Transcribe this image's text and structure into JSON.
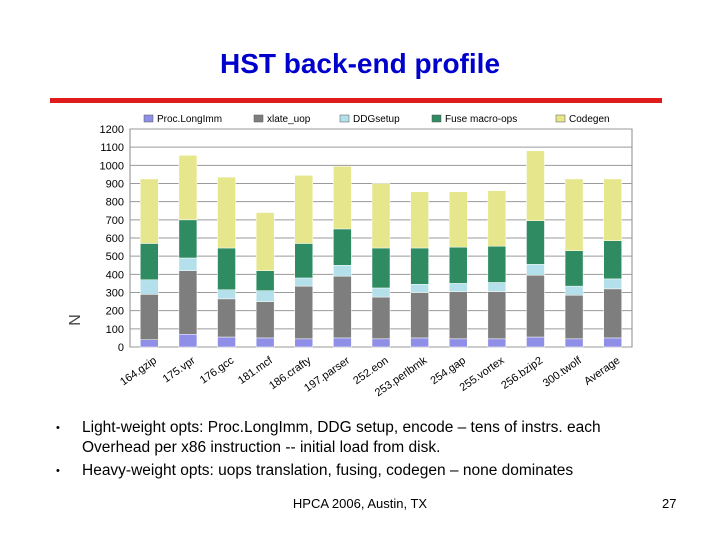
{
  "slide": {
    "title": "HST back-end profile",
    "footer": "HPCA 2006, Austin, TX",
    "page_number": "27",
    "bullets": [
      {
        "lines": [
          "Light-weight opts: Proc.LongImm, DDG setup, encode – tens of instrs. each",
          "Overhead per x86 instruction -- initial load from disk."
        ]
      },
      {
        "lines": [
          "Heavy-weight opts: uops translation, fusing, codegen – none dominates"
        ]
      }
    ]
  },
  "colors": {
    "title": "#0000cc",
    "rule": "#e01b1b",
    "series": [
      "#8f8fe8",
      "#7e7e7e",
      "#b3e0ea",
      "#2e8b62",
      "#e6e68c"
    ]
  },
  "chart_data": {
    "type": "bar",
    "stacked": true,
    "ylim": [
      0,
      1200
    ],
    "yticks": [
      0,
      100,
      200,
      300,
      400,
      500,
      600,
      700,
      800,
      900,
      1000,
      1100,
      1200
    ],
    "ylabel": "N",
    "grid": true,
    "legend": "top",
    "categories": [
      "164.gzip",
      "175.vpr",
      "176.gcc",
      "181.mcf",
      "186.crafty",
      "197.parser",
      "252.eon",
      "253.perlbmk",
      "254.gap",
      "255.vortex",
      "256.bzip2",
      "300.twolf",
      "Average"
    ],
    "tick_labels": [
      "164.gzip",
      "175.vpr",
      "176.gcc",
      "181.mcf",
      "186.crafty",
      "197.parser",
      "252.eon",
      "253.perlbmk",
      "254.gap",
      "255.vortex",
      "256.bzip2",
      "300.twolf",
      "Average"
    ],
    "series": [
      {
        "name": "Proc.LongImm",
        "values": [
          40,
          70,
          55,
          50,
          45,
          50,
          45,
          50,
          45,
          45,
          55,
          45,
          50
        ]
      },
      {
        "name": "xlate_uop",
        "values": [
          250,
          350,
          210,
          200,
          290,
          340,
          230,
          250,
          260,
          260,
          340,
          240,
          270
        ]
      },
      {
        "name": "DDGsetup",
        "values": [
          80,
          70,
          50,
          60,
          45,
          60,
          50,
          45,
          45,
          50,
          60,
          50,
          55
        ]
      },
      {
        "name": "Fuse macro-ops",
        "values": [
          200,
          210,
          230,
          110,
          190,
          200,
          220,
          200,
          200,
          200,
          240,
          195,
          210
        ]
      },
      {
        "name": "Codegen",
        "values": [
          355,
          355,
          390,
          320,
          375,
          345,
          355,
          310,
          305,
          305,
          385,
          395,
          340
        ]
      }
    ]
  }
}
